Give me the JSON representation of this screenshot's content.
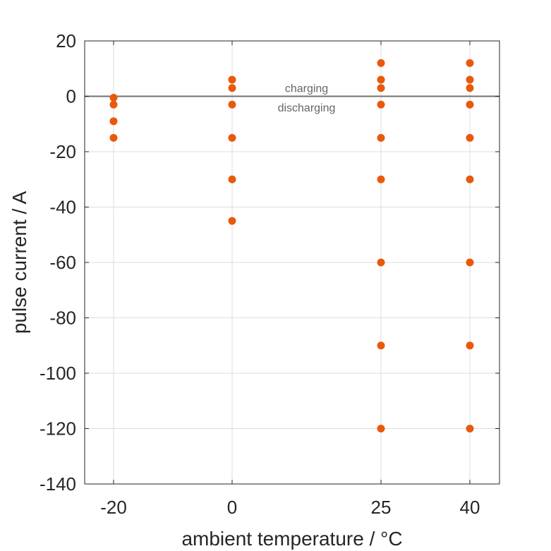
{
  "chart_data": {
    "type": "scatter",
    "title": "",
    "xlabel": "ambient temperature / °C",
    "ylabel": "pulse current / A",
    "x_ticks": [
      -20,
      0,
      25,
      40
    ],
    "x_tick_labels": [
      "-20",
      "0",
      "25",
      "40"
    ],
    "y_ticks": [
      20,
      0,
      -20,
      -40,
      -60,
      -80,
      -100,
      -120,
      -140
    ],
    "y_tick_labels": [
      "20",
      "0",
      "-20",
      "-40",
      "-60",
      "-80",
      "-100",
      "-120",
      "-140"
    ],
    "ylim": [
      -140,
      20
    ],
    "grid": true,
    "reference_line": {
      "y": 0,
      "color": "#707070"
    },
    "annotations": [
      {
        "text": "charging",
        "x": 12.5,
        "y": 3
      },
      {
        "text": "discharging",
        "x": 12.5,
        "y": -4
      }
    ],
    "marker_color": "#e8590c",
    "points": [
      {
        "x": -20,
        "y": -0.5
      },
      {
        "x": -20,
        "y": -3
      },
      {
        "x": -20,
        "y": -9
      },
      {
        "x": -20,
        "y": -15
      },
      {
        "x": 0,
        "y": 6
      },
      {
        "x": 0,
        "y": 3
      },
      {
        "x": 0,
        "y": -3
      },
      {
        "x": 0,
        "y": -15
      },
      {
        "x": 0,
        "y": -30
      },
      {
        "x": 0,
        "y": -45
      },
      {
        "x": 25,
        "y": 12
      },
      {
        "x": 25,
        "y": 6
      },
      {
        "x": 25,
        "y": 3
      },
      {
        "x": 25,
        "y": -3
      },
      {
        "x": 25,
        "y": -15
      },
      {
        "x": 25,
        "y": -30
      },
      {
        "x": 25,
        "y": -60
      },
      {
        "x": 25,
        "y": -90
      },
      {
        "x": 25,
        "y": -120
      },
      {
        "x": 40,
        "y": 12
      },
      {
        "x": 40,
        "y": 6
      },
      {
        "x": 40,
        "y": 3
      },
      {
        "x": 40,
        "y": -3
      },
      {
        "x": 40,
        "y": -15
      },
      {
        "x": 40,
        "y": -30
      },
      {
        "x": 40,
        "y": -60
      },
      {
        "x": 40,
        "y": -90
      },
      {
        "x": 40,
        "y": -120
      }
    ]
  }
}
